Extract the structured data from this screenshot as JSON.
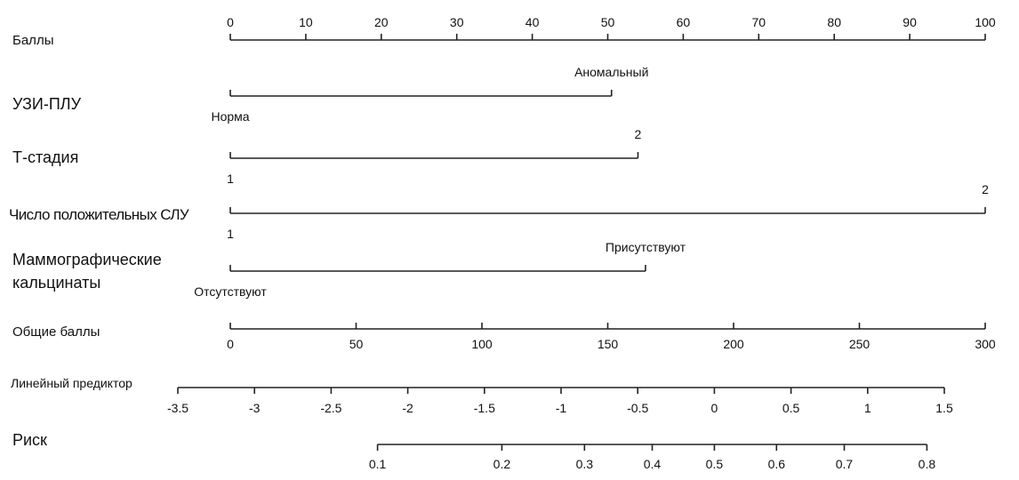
{
  "chart_data": {
    "type": "nomogram",
    "points_axis": {
      "label": "Баллы",
      "xlim": [
        0,
        100
      ],
      "xticks": [
        0,
        10,
        20,
        30,
        40,
        50,
        60,
        70,
        80,
        90,
        100
      ]
    },
    "variables": [
      {
        "label": "УЗИ-ПЛУ",
        "levels": [
          {
            "label": "Норма",
            "points": 0
          },
          {
            "label": "Аномальный",
            "points": 50.5
          }
        ]
      },
      {
        "label": "Т-стадия",
        "levels": [
          {
            "label": "1",
            "points": 0
          },
          {
            "label": "2",
            "points": 54
          }
        ]
      },
      {
        "label": "Число положительных СЛУ",
        "levels": [
          {
            "label": "1",
            "points": 0
          },
          {
            "label": "2",
            "points": 100
          }
        ]
      },
      {
        "label": "Маммографические кальцинаты",
        "levels": [
          {
            "label": "Отсутствуют",
            "points": 0
          },
          {
            "label": "Присутствуют",
            "points": 55
          }
        ]
      }
    ],
    "total_points_axis": {
      "label": "Общие баллы",
      "xlim": [
        0,
        300
      ],
      "xticks": [
        0,
        50,
        100,
        150,
        200,
        250,
        300
      ]
    },
    "linear_predictor_axis": {
      "label": "Линейный предиктор",
      "xlim": [
        -3.5,
        1.5
      ],
      "xticks": [
        -3.5,
        -3,
        -2.5,
        -2,
        -1.5,
        -1,
        -0.5,
        0,
        0.5,
        1,
        1.5
      ]
    },
    "risk_axis": {
      "label": "Риск",
      "scale": "logit",
      "xlim": [
        0.1,
        0.8
      ],
      "xticks": [
        0.1,
        0.2,
        0.3,
        0.4,
        0.5,
        0.6,
        0.7,
        0.8
      ]
    }
  }
}
